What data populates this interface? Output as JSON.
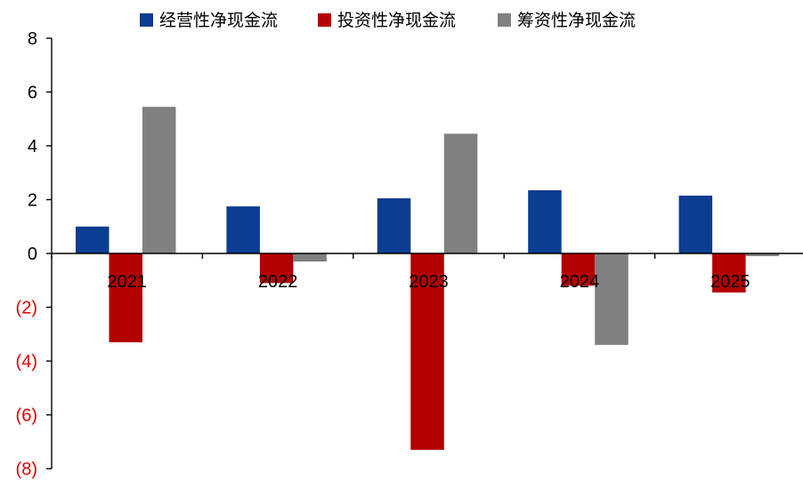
{
  "chart_data": {
    "type": "bar",
    "categories": [
      "2021",
      "2022",
      "2023",
      "2024",
      "2025"
    ],
    "series": [
      {
        "name": "经营性净现金流",
        "color": "#0b3d91",
        "values": [
          1.0,
          1.75,
          2.05,
          2.35,
          2.15
        ]
      },
      {
        "name": "投资性净现金流",
        "color": "#b30000",
        "values": [
          -3.3,
          -1.1,
          -7.3,
          -1.2,
          -1.45
        ]
      },
      {
        "name": "筹资性净现金流",
        "color": "#808080",
        "values": [
          5.45,
          -0.3,
          4.45,
          -3.4,
          -0.1
        ]
      }
    ],
    "ylim": [
      -8,
      8
    ],
    "yticks": [
      8,
      6,
      4,
      2,
      0,
      -2,
      -4,
      -6,
      -8
    ],
    "ytick_labels": [
      "8",
      "6",
      "4",
      "2",
      "0",
      "(2)",
      "(4)",
      "(6)",
      "(8)"
    ],
    "negative_tick_color": "#e00000",
    "legend_position": "top",
    "grid": false
  }
}
